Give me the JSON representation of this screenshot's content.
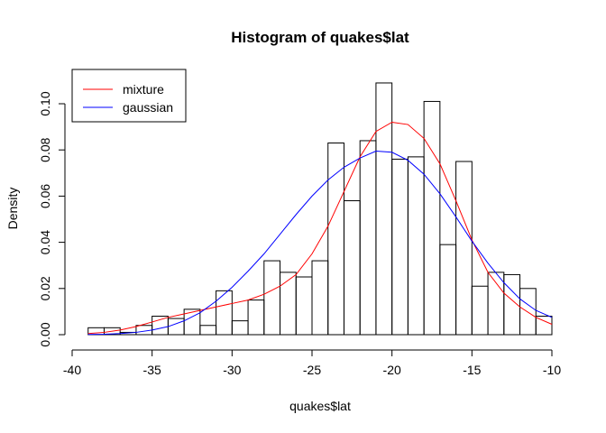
{
  "chart_data": {
    "type": "histogram",
    "title": "Histogram of quakes$lat",
    "xlabel": "quakes$lat",
    "ylabel": "Density",
    "xlim": [
      -40,
      -10
    ],
    "ylim": [
      0,
      0.11
    ],
    "xticks": [
      -40,
      -35,
      -30,
      -25,
      -20,
      -15,
      -10
    ],
    "yticks": [
      0.0,
      0.02,
      0.04,
      0.06,
      0.08,
      0.1
    ],
    "ytick_labels": [
      "0.00",
      "0.02",
      "0.04",
      "0.06",
      "0.08",
      "0.10"
    ],
    "grid": false,
    "legend_position": "top-left",
    "bins": [
      {
        "x0": -39,
        "x1": -38,
        "density": 0.003
      },
      {
        "x0": -38,
        "x1": -37,
        "density": 0.003
      },
      {
        "x0": -37,
        "x1": -36,
        "density": 0.001
      },
      {
        "x0": -36,
        "x1": -35,
        "density": 0.004
      },
      {
        "x0": -35,
        "x1": -34,
        "density": 0.008
      },
      {
        "x0": -34,
        "x1": -33,
        "density": 0.007
      },
      {
        "x0": -33,
        "x1": -32,
        "density": 0.011
      },
      {
        "x0": -32,
        "x1": -31,
        "density": 0.004
      },
      {
        "x0": -31,
        "x1": -30,
        "density": 0.019
      },
      {
        "x0": -30,
        "x1": -29,
        "density": 0.006
      },
      {
        "x0": -29,
        "x1": -28,
        "density": 0.015
      },
      {
        "x0": -28,
        "x1": -27,
        "density": 0.032
      },
      {
        "x0": -27,
        "x1": -26,
        "density": 0.027
      },
      {
        "x0": -26,
        "x1": -25,
        "density": 0.025
      },
      {
        "x0": -25,
        "x1": -24,
        "density": 0.032
      },
      {
        "x0": -24,
        "x1": -23,
        "density": 0.083
      },
      {
        "x0": -23,
        "x1": -22,
        "density": 0.058
      },
      {
        "x0": -22,
        "x1": -21,
        "density": 0.084
      },
      {
        "x0": -21,
        "x1": -20,
        "density": 0.109
      },
      {
        "x0": -20,
        "x1": -19,
        "density": 0.076
      },
      {
        "x0": -19,
        "x1": -18,
        "density": 0.077
      },
      {
        "x0": -18,
        "x1": -17,
        "density": 0.101
      },
      {
        "x0": -17,
        "x1": -16,
        "density": 0.039
      },
      {
        "x0": -16,
        "x1": -15,
        "density": 0.075
      },
      {
        "x0": -15,
        "x1": -14,
        "density": 0.021
      },
      {
        "x0": -14,
        "x1": -13,
        "density": 0.027
      },
      {
        "x0": -13,
        "x1": -12,
        "density": 0.026
      },
      {
        "x0": -12,
        "x1": -11,
        "density": 0.02
      },
      {
        "x0": -11,
        "x1": -10,
        "density": 0.008
      }
    ],
    "series": [
      {
        "name": "mixture",
        "color": "#ff0000",
        "x": [
          -39,
          -38,
          -37,
          -36,
          -35,
          -34,
          -33,
          -32,
          -31,
          -30,
          -29,
          -28,
          -27,
          -26,
          -25,
          -24,
          -23,
          -22,
          -21,
          -20,
          -19,
          -18,
          -17,
          -16,
          -15,
          -14,
          -13,
          -12,
          -11,
          -10
        ],
        "y": [
          0.0005,
          0.001,
          0.002,
          0.0035,
          0.0055,
          0.0075,
          0.009,
          0.0105,
          0.012,
          0.0135,
          0.015,
          0.0175,
          0.021,
          0.026,
          0.035,
          0.047,
          0.062,
          0.077,
          0.088,
          0.092,
          0.091,
          0.085,
          0.074,
          0.058,
          0.041,
          0.027,
          0.018,
          0.012,
          0.0075,
          0.0045
        ]
      },
      {
        "name": "gaussian",
        "color": "#0000ff",
        "x": [
          -39,
          -38,
          -37,
          -36,
          -35,
          -34,
          -33,
          -32,
          -31,
          -30,
          -29,
          -28,
          -27,
          -26,
          -25,
          -24,
          -23,
          -22,
          -21,
          -20,
          -19,
          -18,
          -17,
          -16,
          -15,
          -14,
          -13,
          -12,
          -11,
          -10
        ],
        "y": [
          0.0001,
          0.0002,
          0.0005,
          0.001,
          0.002,
          0.0035,
          0.006,
          0.0095,
          0.0145,
          0.0205,
          0.0275,
          0.035,
          0.0435,
          0.052,
          0.06,
          0.067,
          0.0725,
          0.0765,
          0.0795,
          0.079,
          0.0755,
          0.0695,
          0.061,
          0.051,
          0.0405,
          0.031,
          0.0225,
          0.0155,
          0.0105,
          0.0075
        ]
      }
    ]
  }
}
